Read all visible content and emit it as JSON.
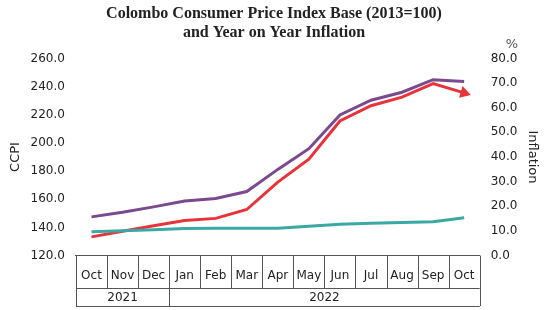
{
  "chart_data": {
    "type": "line",
    "title": [
      "Colombo Consumer Price Index Base (2013=100)",
      "and Year on Year Inflation"
    ],
    "ylabel": "CCPI",
    "y2label": "Inflation",
    "y2unit": "%",
    "categories": [
      "Oct",
      "Nov",
      "Dec",
      "Jan",
      "Feb",
      "Mar",
      "Apr",
      "May",
      "Jun",
      "Jul",
      "Aug",
      "Sep",
      "Oct"
    ],
    "category_groups": [
      {
        "label": "2021",
        "count": 3
      },
      {
        "label": "2022",
        "count": 10
      }
    ],
    "series": [
      {
        "color": "#7b4a8e",
        "values": [
          147.5,
          150.8,
          154.6,
          158.7,
          160.5,
          165.5,
          181.2,
          195.9,
          219.9,
          230.3,
          236.0,
          244.9,
          243.6
        ]
      },
      {
        "color": "#3aa9a6",
        "values": [
          137.0,
          137.6,
          138.3,
          139.2,
          139.5,
          139.4,
          139.4,
          140.8,
          142.3,
          143.0,
          143.5,
          144.0,
          146.9
        ]
      },
      {
        "color": "#e8333a",
        "axis": "y2",
        "marker": "arrow",
        "values": [
          7.6,
          9.9,
          12.1,
          14.2,
          15.1,
          18.7,
          29.8,
          39.1,
          54.6,
          60.8,
          64.3,
          69.8,
          66.0
        ]
      }
    ],
    "ylim": [
      120,
      260
    ],
    "yticks": [
      {
        "value": 120,
        "label": "120.0"
      },
      {
        "value": 140,
        "label": "140.0"
      },
      {
        "value": 160,
        "label": "160.0"
      },
      {
        "value": 180,
        "label": "180.0"
      },
      {
        "value": 200,
        "label": "200.0"
      },
      {
        "value": 220,
        "label": "220.0"
      },
      {
        "value": 240,
        "label": "240.0"
      },
      {
        "value": 260,
        "label": "260.0"
      }
    ],
    "y2lim": [
      0,
      80
    ],
    "y2ticks": [
      {
        "value": 0,
        "label": "0.0"
      },
      {
        "value": 10,
        "label": "10.0"
      },
      {
        "value": 20,
        "label": "20.0"
      },
      {
        "value": 30,
        "label": "30.0"
      },
      {
        "value": 40,
        "label": "40.0"
      },
      {
        "value": 50,
        "label": "50.0"
      },
      {
        "value": 60,
        "label": "60.0"
      },
      {
        "value": 70,
        "label": "70.0"
      },
      {
        "value": 80,
        "label": "80.0"
      }
    ],
    "grid": false
  }
}
